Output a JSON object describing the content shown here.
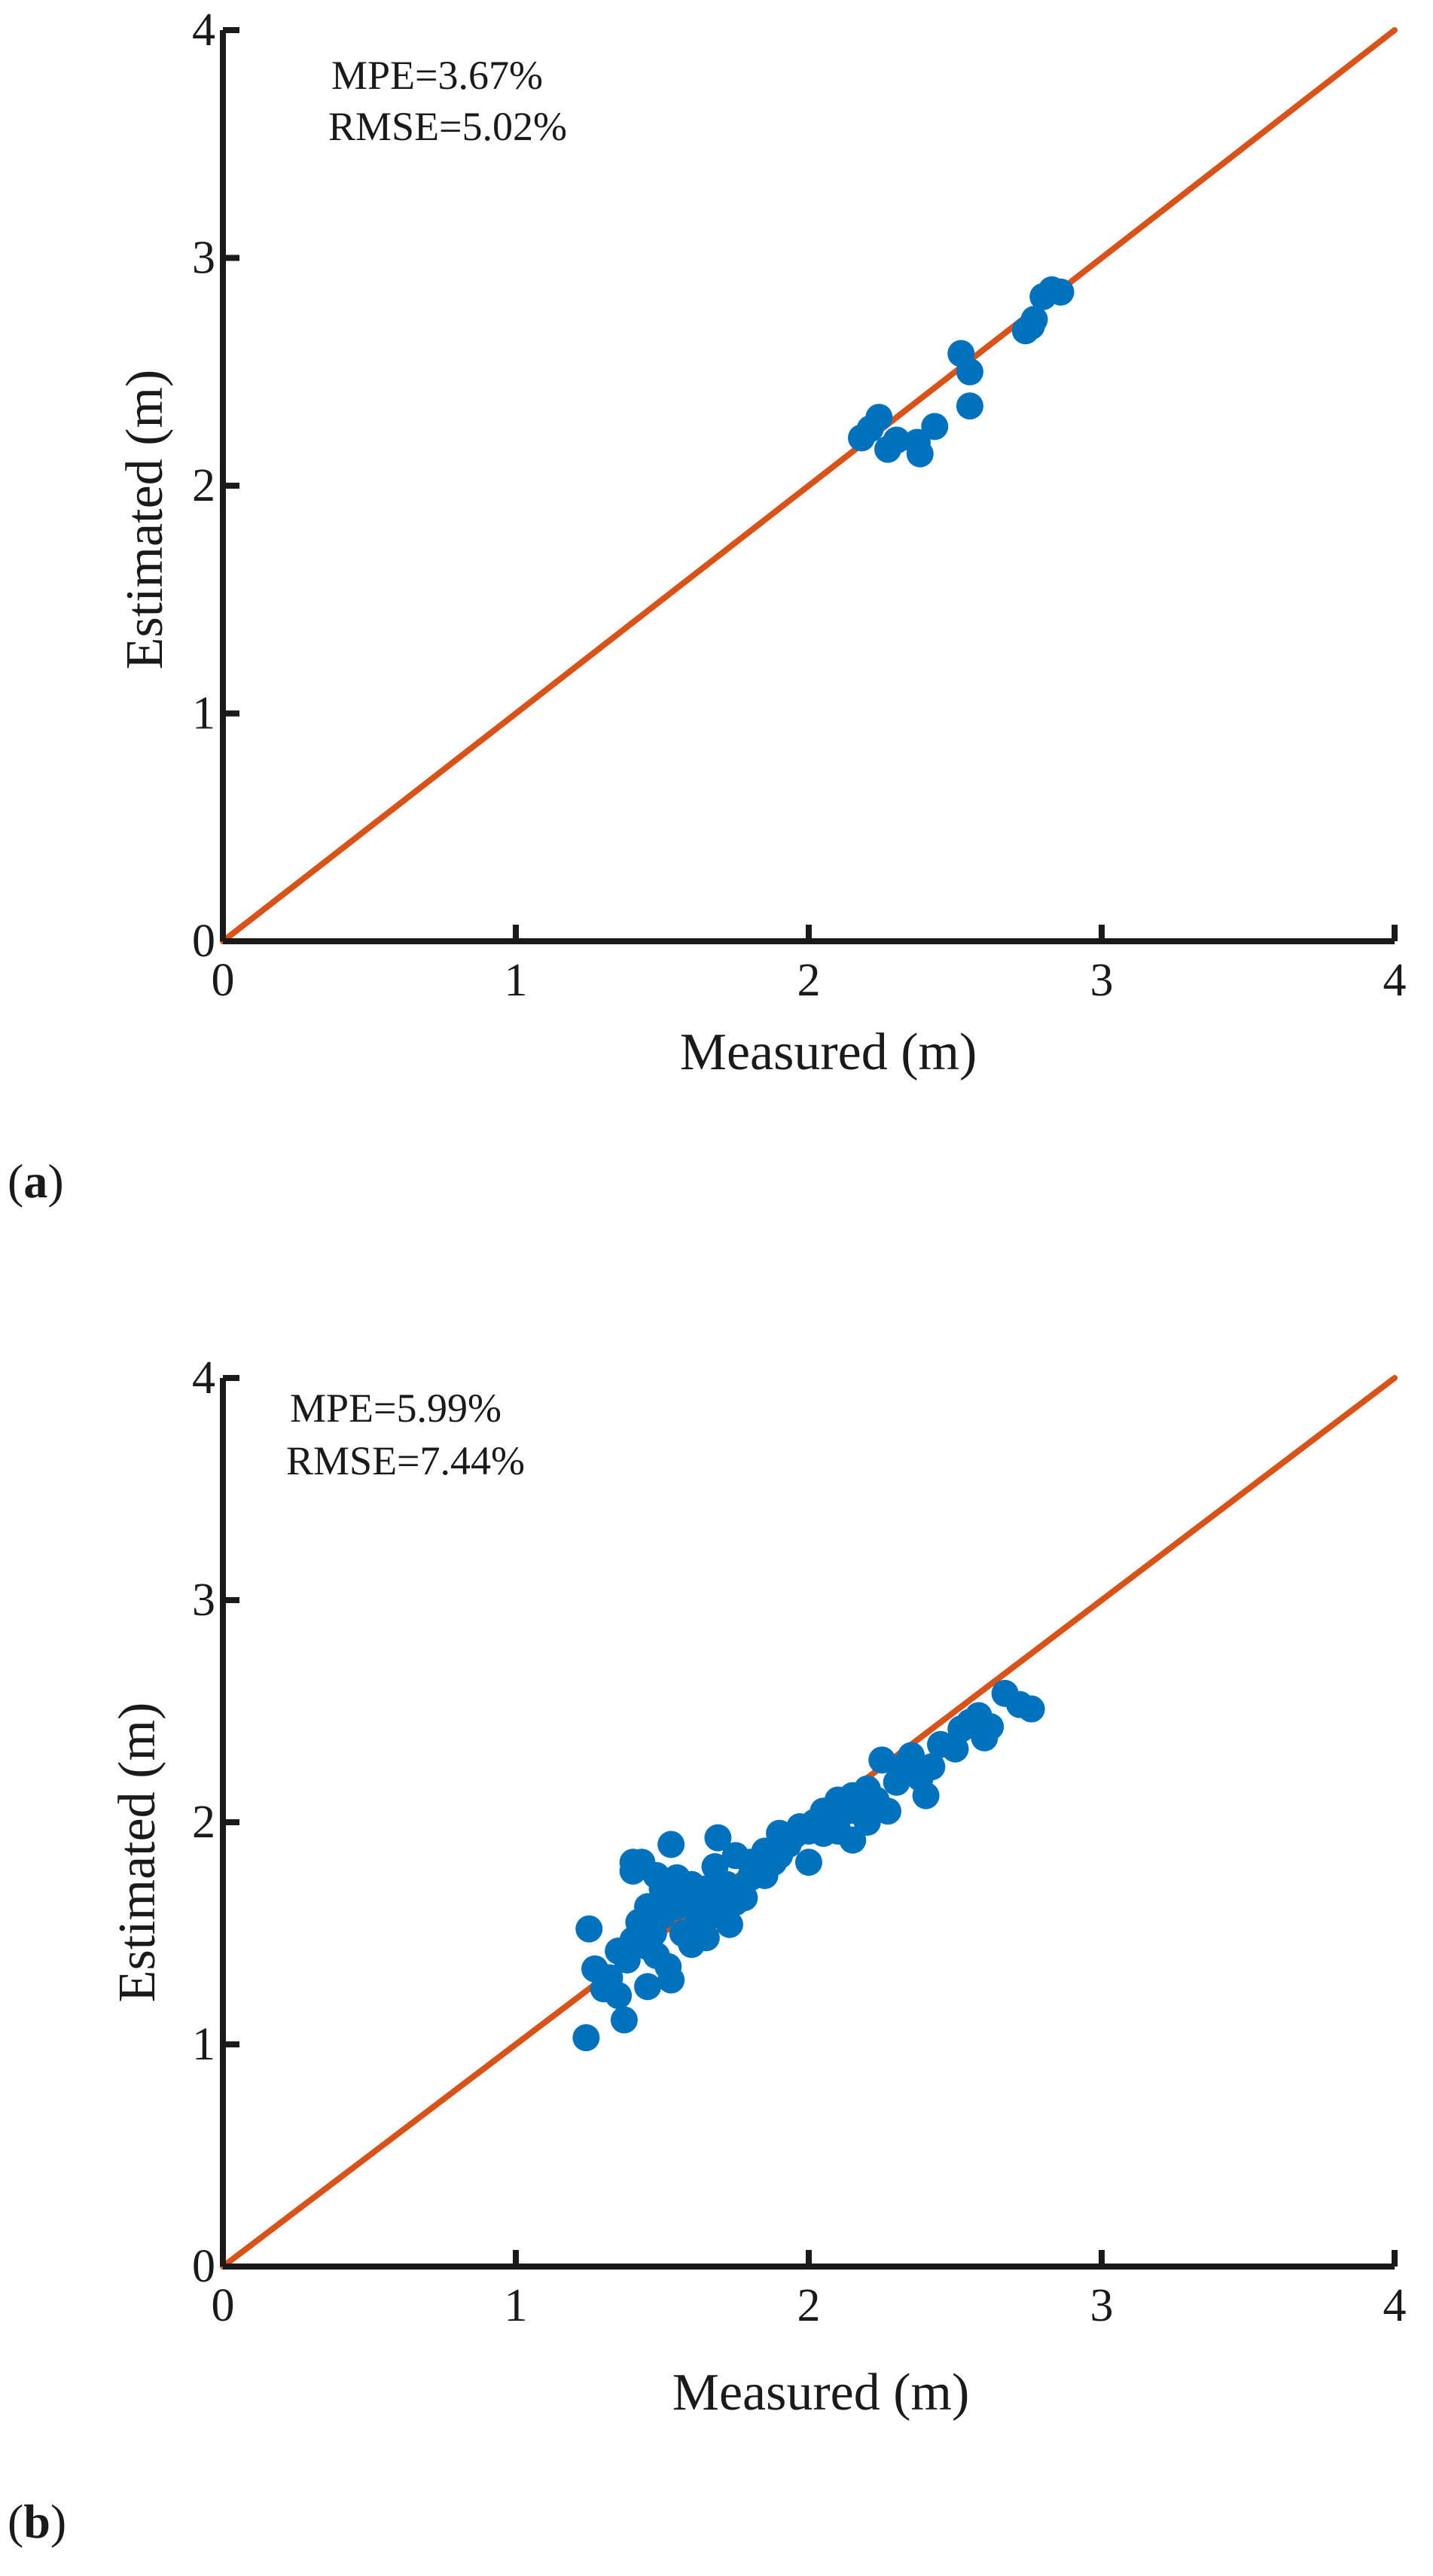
{
  "chart_data": [
    {
      "type": "scatter",
      "panel_label": "a",
      "xlabel": "Measured (m)",
      "ylabel": "Estimated (m)",
      "xlim": [
        0,
        4
      ],
      "ylim": [
        0,
        4
      ],
      "xticks": [
        "0",
        "1",
        "2",
        "3",
        "4"
      ],
      "yticks": [
        "0",
        "1",
        "2",
        "3",
        "4"
      ],
      "annotations": [
        "MPE=3.67%",
        "RMSE=5.02%"
      ],
      "colors": {
        "points": "#0072BD",
        "line": "#D95319",
        "axes": "#1a1a1a"
      },
      "reference_line": {
        "x": [
          0,
          4
        ],
        "y": [
          0,
          4
        ]
      },
      "series": [
        {
          "x": [
            2.18,
            2.21,
            2.24,
            2.27,
            2.3,
            2.37,
            2.38,
            2.43,
            2.52,
            2.55,
            2.55,
            2.74,
            2.76,
            2.77,
            2.8,
            2.83,
            2.86
          ],
          "y": [
            2.21,
            2.25,
            2.3,
            2.16,
            2.2,
            2.19,
            2.14,
            2.26,
            2.58,
            2.35,
            2.5,
            2.68,
            2.7,
            2.73,
            2.83,
            2.86,
            2.85
          ]
        }
      ]
    },
    {
      "type": "scatter",
      "panel_label": "b",
      "xlabel": "Measured (m)",
      "ylabel": "Estimated (m)",
      "xlim": [
        0,
        4
      ],
      "ylim": [
        0,
        4
      ],
      "xticks": [
        "0",
        "1",
        "2",
        "3",
        "4"
      ],
      "yticks": [
        "0",
        "1",
        "2",
        "3",
        "4"
      ],
      "annotations": [
        "MPE=5.99%",
        "RMSE=7.44%"
      ],
      "colors": {
        "points": "#0072BD",
        "line": "#D95319",
        "axes": "#1a1a1a"
      },
      "reference_line": {
        "x": [
          0,
          4
        ],
        "y": [
          0,
          4
        ]
      },
      "series": [
        {
          "x": [
            1.24,
            1.25,
            1.27,
            1.3,
            1.32,
            1.35,
            1.37,
            1.38,
            1.4,
            1.4,
            1.42,
            1.43,
            1.45,
            1.45,
            1.47,
            1.48,
            1.5,
            1.5,
            1.52,
            1.53,
            1.55,
            1.55,
            1.57,
            1.58,
            1.6,
            1.6,
            1.62,
            1.63,
            1.65,
            1.65,
            1.67,
            1.68,
            1.7,
            1.7,
            1.72,
            1.73,
            1.75,
            1.75,
            1.78,
            1.8,
            1.8,
            1.82,
            1.85,
            1.85,
            1.88,
            1.9,
            1.9,
            1.93,
            1.95,
            1.97,
            2.0,
            2.0,
            2.02,
            2.05,
            2.05,
            2.08,
            2.1,
            2.1,
            2.13,
            2.15,
            2.15,
            2.18,
            2.2,
            2.2,
            2.23,
            2.25,
            2.27,
            2.3,
            2.32,
            2.35,
            2.38,
            2.4,
            2.42,
            2.45,
            2.5,
            2.52,
            2.55,
            2.58,
            2.6,
            2.62,
            2.67,
            2.72,
            2.76,
            1.53,
            1.69,
            1.4,
            1.48,
            1.57,
            1.63,
            1.75,
            1.35,
            1.45
          ],
          "y": [
            1.03,
            1.52,
            1.34,
            1.25,
            1.3,
            1.42,
            1.11,
            1.38,
            1.78,
            1.47,
            1.55,
            1.82,
            1.26,
            1.62,
            1.5,
            1.4,
            1.58,
            1.7,
            1.35,
            1.29,
            1.62,
            1.75,
            1.5,
            1.67,
            1.45,
            1.72,
            1.55,
            1.62,
            1.48,
            1.7,
            1.6,
            1.8,
            1.58,
            1.68,
            1.72,
            1.54,
            1.7,
            1.85,
            1.66,
            1.75,
            1.82,
            1.79,
            1.76,
            1.87,
            1.82,
            1.85,
            1.95,
            1.9,
            1.94,
            1.98,
            1.82,
            1.96,
            2.0,
            1.95,
            2.05,
            2.02,
            1.96,
            2.1,
            2.05,
            1.92,
            2.12,
            2.04,
            2.0,
            2.15,
            2.1,
            2.28,
            2.05,
            2.18,
            2.25,
            2.3,
            2.2,
            2.12,
            2.25,
            2.35,
            2.33,
            2.42,
            2.45,
            2.48,
            2.38,
            2.43,
            2.58,
            2.53,
            2.51,
            1.9,
            1.93,
            1.82,
            1.76,
            1.66,
            1.5,
            1.64,
            1.22,
            1.44
          ]
        }
      ]
    }
  ]
}
